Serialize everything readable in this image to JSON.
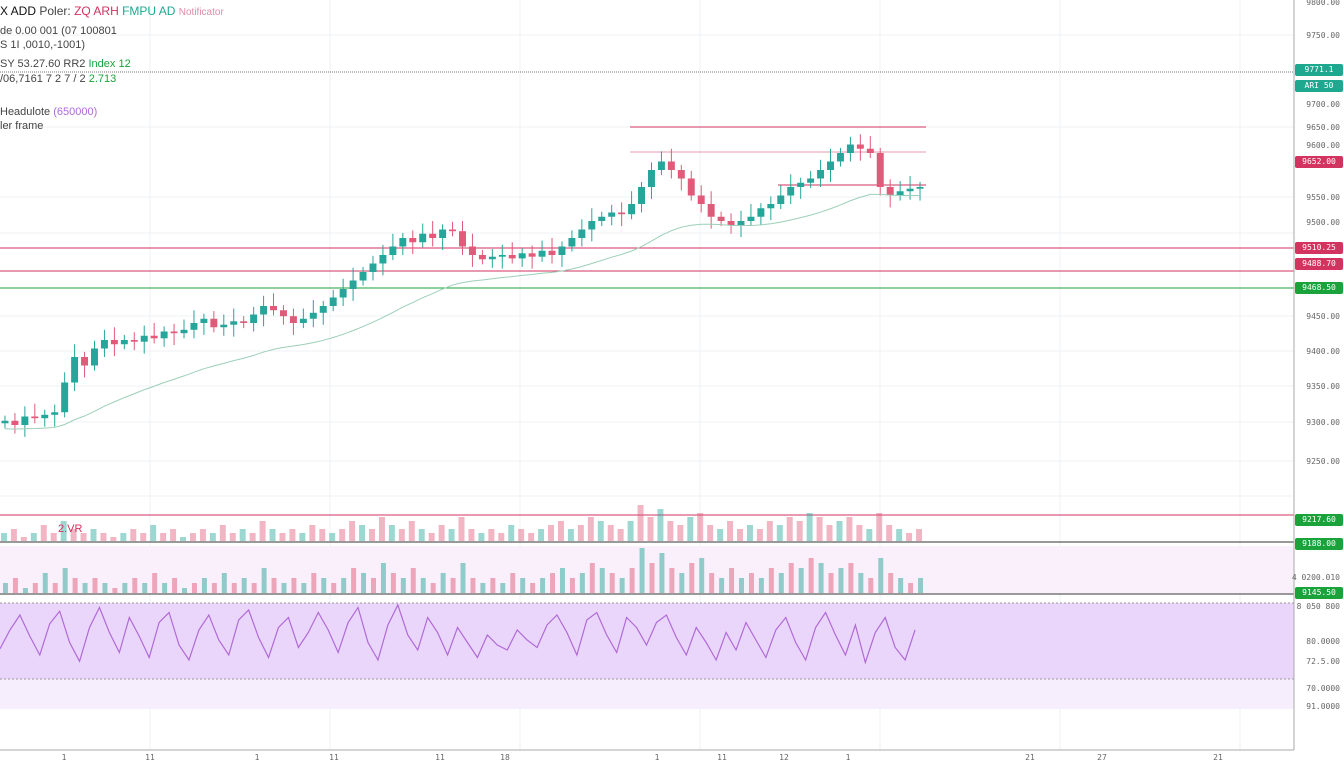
{
  "header": {
    "symbol": "X ADD",
    "pair_label": "Poler:",
    "indicator_red": "ZQ ARH",
    "indicator_teal": "FMPU AD",
    "indicator_pink": "Notificator",
    "line2": "de 0.00 001 (07 100801",
    "line3": "S 1I ,0010,-1001)",
    "line4": "SY 53.27.60 RR2",
    "line4_green": "Index 12",
    "line5": "/06,7161 7 2 7 / 2",
    "line5_green": "2.713",
    "line6": "Headulote",
    "line6_purple": "(650000)",
    "line7": "ler frame",
    "vol_label": "2.VR"
  },
  "colors": {
    "up": "#26a69a",
    "down": "#e05a7a",
    "rsi": "#b06ad6",
    "rsi_fill": "#ead6fb",
    "red_line": "#d2335f",
    "green_line": "#1aa33a"
  },
  "price_axis": [
    "9800.00",
    "9750.00",
    "9700.00",
    "9650.00",
    "9600.00",
    "9550.00",
    "9500.00",
    "9450.00",
    "9400.00",
    "9350.00",
    "9300.00",
    "9250.00"
  ],
  "tags": [
    {
      "text": "9771.1",
      "color": "#1fa890"
    },
    {
      "text": "ARI 50",
      "color": "#1fa890"
    },
    {
      "text": "9652.00",
      "color": "#d2335f"
    },
    {
      "text": "9510.25",
      "color": "#d2335f"
    },
    {
      "text": "9488.70",
      "color": "#d2335f"
    },
    {
      "text": "9468.50",
      "color": "#1aa33a"
    },
    {
      "text": "9217.60",
      "color": "#1aa33a"
    },
    {
      "text": "9188.00",
      "color": "#1aa33a"
    },
    {
      "text": "9145.50",
      "color": "#1aa33a"
    }
  ],
  "lower_axis": [
    "4 0200.010",
    "8 050 800",
    "80.0000",
    "72.5.00",
    "70.0000",
    "91.0000"
  ],
  "time_axis": [
    "1",
    "11",
    "1",
    "11",
    "11",
    "18",
    "1",
    "11",
    "12",
    "1",
    "21",
    "27",
    "21"
  ],
  "chart_data": {
    "type": "candlestick",
    "ylim": [
      9200,
      9800
    ],
    "closes": [
      9305,
      9300,
      9310,
      9308,
      9312,
      9315,
      9350,
      9380,
      9370,
      9390,
      9400,
      9395,
      9400,
      9398,
      9405,
      9402,
      9410,
      9408,
      9412,
      9420,
      9425,
      9415,
      9418,
      9422,
      9420,
      9430,
      9440,
      9435,
      9428,
      9420,
      9425,
      9432,
      9440,
      9450,
      9460,
      9470,
      9480,
      9490,
      9500,
      9510,
      9520,
      9515,
      9525,
      9520,
      9530,
      9528,
      9510,
      9500,
      9495,
      9498,
      9500,
      9496,
      9502,
      9498,
      9505,
      9500,
      9510,
      9520,
      9530,
      9540,
      9545,
      9550,
      9548,
      9560,
      9580,
      9600,
      9610,
      9600,
      9590,
      9570,
      9560,
      9545,
      9540,
      9535,
      9540,
      9545,
      9555,
      9560,
      9570,
      9580,
      9585,
      9590,
      9600,
      9610,
      9620,
      9630,
      9625,
      9620,
      9580,
      9570,
      9575,
      9578,
      9580
    ],
    "volume": [
      2,
      3,
      1,
      2,
      4,
      2,
      5,
      3,
      2,
      3,
      2,
      1,
      2,
      3,
      2,
      4,
      2,
      3,
      1,
      2,
      3,
      2,
      4,
      2,
      3,
      2,
      5,
      3,
      2,
      3,
      2,
      4,
      3,
      2,
      3,
      5,
      4,
      3,
      6,
      4,
      3,
      5,
      3,
      2,
      4,
      3,
      6,
      3,
      2,
      3,
      2,
      4,
      3,
      2,
      3,
      4,
      5,
      3,
      4,
      6,
      5,
      4,
      3,
      5,
      9,
      6,
      8,
      5,
      4,
      6,
      7,
      4,
      3,
      5,
      3,
      4,
      3,
      5,
      4,
      6,
      5,
      7,
      6,
      4,
      5,
      6,
      4,
      3,
      7,
      4,
      3,
      2,
      3
    ],
    "rsi": [
      45,
      60,
      72,
      55,
      40,
      65,
      75,
      50,
      35,
      62,
      78,
      58,
      42,
      70,
      55,
      38,
      66,
      74,
      48,
      36,
      60,
      72,
      52,
      40,
      68,
      76,
      54,
      38,
      62,
      70,
      46,
      58,
      74,
      60,
      42,
      66,
      78,
      50,
      36,
      64,
      80,
      56,
      44,
      70,
      58,
      40,
      62,
      50,
      38,
      56,
      48,
      44,
      60,
      52,
      46,
      64,
      72,
      58,
      40,
      68,
      74,
      56,
      42,
      70,
      62,
      48,
      66,
      72,
      54,
      40,
      62,
      50,
      36,
      58,
      44,
      66,
      52,
      38,
      60,
      70,
      50,
      36,
      62,
      74,
      56,
      40,
      64,
      34,
      58,
      70,
      46,
      36,
      60
    ],
    "moving_average": "EMA"
  }
}
